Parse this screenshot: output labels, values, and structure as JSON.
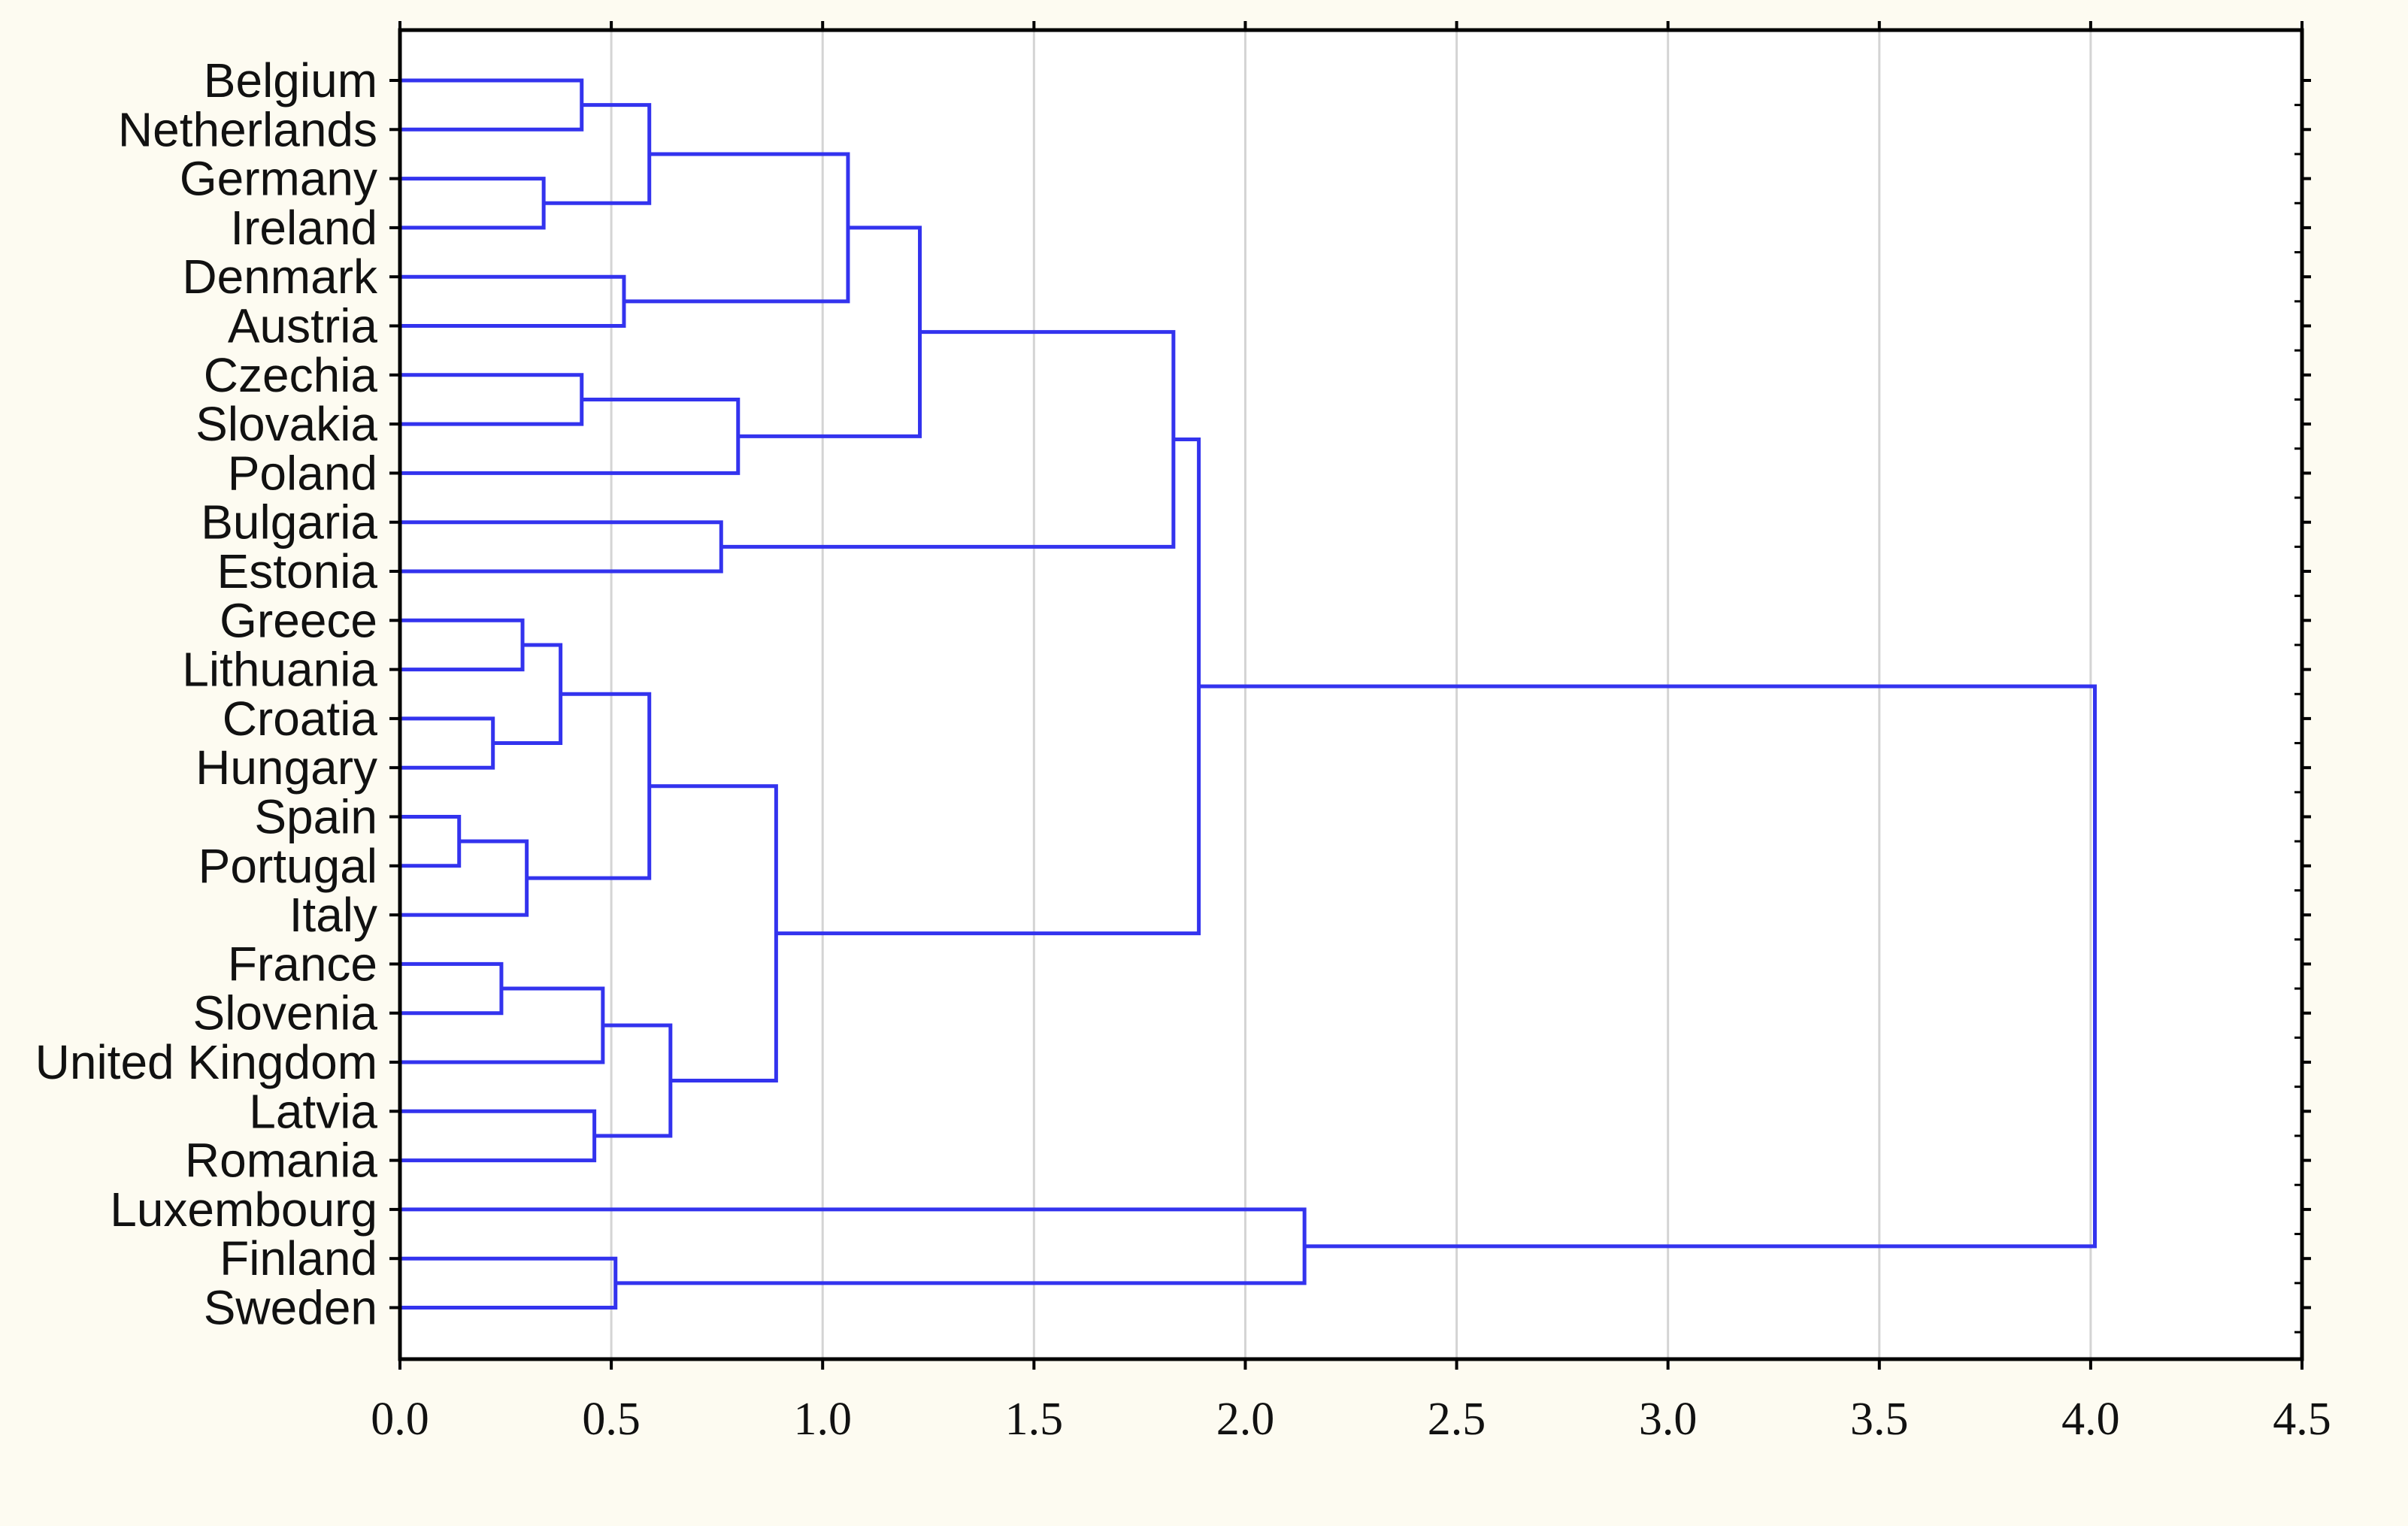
{
  "colors": {
    "background": "#fdfbf1",
    "plot_background": "#ffffff",
    "link": "#3333ee",
    "grid": "#d4d4d4",
    "axis": "#000000"
  },
  "chart_data": {
    "type": "dendrogram",
    "orientation": "horizontal",
    "title": "",
    "xlabel": "",
    "ylabel": "",
    "xlim": [
      0,
      4.5
    ],
    "x_ticks": [
      "0.0",
      "0.5",
      "1.0",
      "1.5",
      "2.0",
      "2.5",
      "3.0",
      "3.5",
      "4.0",
      "4.5"
    ],
    "grid": "vertical",
    "leaves": [
      "Belgium",
      "Netherlands",
      "Germany",
      "Ireland",
      "Denmark",
      "Austria",
      "Czechia",
      "Slovakia",
      "Poland",
      "Bulgaria",
      "Estonia",
      "Greece",
      "Lithuania",
      "Croatia",
      "Hungary",
      "Spain",
      "Portugal",
      "Italy",
      "France",
      "Slovenia",
      "United Kingdom",
      "Latvia",
      "Romania",
      "Luxembourg",
      "Finland",
      "Sweden"
    ],
    "merges": [
      {
        "id": "c1",
        "left": "Belgium",
        "right": "Netherlands",
        "height": 0.43
      },
      {
        "id": "c2",
        "left": "Germany",
        "right": "Ireland",
        "height": 0.34
      },
      {
        "id": "c3",
        "left": "c1",
        "right": "c2",
        "height": 0.59
      },
      {
        "id": "c4",
        "left": "Denmark",
        "right": "Austria",
        "height": 0.53
      },
      {
        "id": "c5",
        "left": "c3",
        "right": "c4",
        "height": 1.06
      },
      {
        "id": "c6",
        "left": "Czechia",
        "right": "Slovakia",
        "height": 0.43
      },
      {
        "id": "c7",
        "left": "c6",
        "right": "Poland",
        "height": 0.8
      },
      {
        "id": "c8",
        "left": "c5",
        "right": "c7",
        "height": 1.23
      },
      {
        "id": "c9",
        "left": "Bulgaria",
        "right": "Estonia",
        "height": 0.76
      },
      {
        "id": "c10",
        "left": "c8",
        "right": "c9",
        "height": 1.83
      },
      {
        "id": "c11",
        "left": "Greece",
        "right": "Lithuania",
        "height": 0.29
      },
      {
        "id": "c12",
        "left": "Croatia",
        "right": "Hungary",
        "height": 0.22
      },
      {
        "id": "c13",
        "left": "c11",
        "right": "c12",
        "height": 0.38
      },
      {
        "id": "c14",
        "left": "Spain",
        "right": "Portugal",
        "height": 0.14
      },
      {
        "id": "c15",
        "left": "c14",
        "right": "Italy",
        "height": 0.3
      },
      {
        "id": "c16",
        "left": "c13",
        "right": "c15",
        "height": 0.59
      },
      {
        "id": "c17",
        "left": "France",
        "right": "Slovenia",
        "height": 0.24
      },
      {
        "id": "c18",
        "left": "c17",
        "right": "United Kingdom",
        "height": 0.48
      },
      {
        "id": "c19",
        "left": "Latvia",
        "right": "Romania",
        "height": 0.46
      },
      {
        "id": "c20",
        "left": "c18",
        "right": "c19",
        "height": 0.64
      },
      {
        "id": "c21",
        "left": "c16",
        "right": "c20",
        "height": 0.89
      },
      {
        "id": "c22",
        "left": "c10",
        "right": "c21",
        "height": 1.89
      },
      {
        "id": "c23",
        "left": "Finland",
        "right": "Sweden",
        "height": 0.51
      },
      {
        "id": "c24",
        "left": "Luxembourg",
        "right": "c23",
        "height": 2.14
      },
      {
        "id": "c25",
        "left": "c22",
        "right": "c24",
        "height": 4.01
      }
    ]
  }
}
